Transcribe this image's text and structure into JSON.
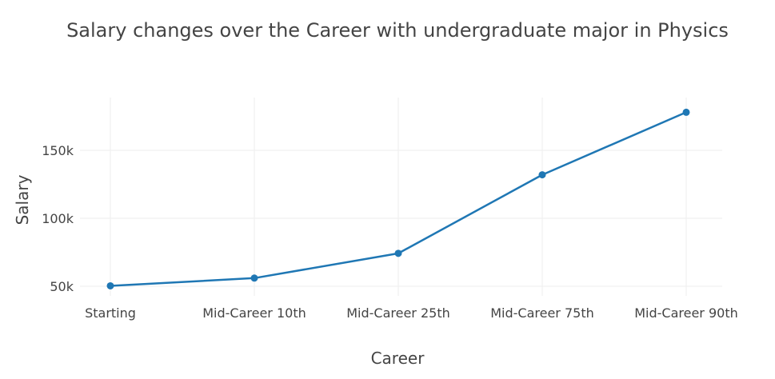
{
  "chart_data": {
    "type": "line",
    "title": "Salary changes over the Career with undergraduate major in Physics",
    "xlabel": "Career",
    "ylabel": "Salary",
    "categories": [
      "Starting",
      "Mid-Career 10th",
      "Mid-Career 25th",
      "Mid-Career 75th",
      "Mid-Career 90th"
    ],
    "series": [
      {
        "values": [
          50300,
          56000,
          74200,
          132000,
          178000
        ],
        "color": "#1f77b4"
      }
    ],
    "yticks": [
      50000,
      100000,
      150000
    ],
    "ytick_labels": [
      "50k",
      "100k",
      "150k"
    ],
    "ylim": [
      45000,
      190000
    ],
    "grid": true,
    "legend": "none"
  }
}
